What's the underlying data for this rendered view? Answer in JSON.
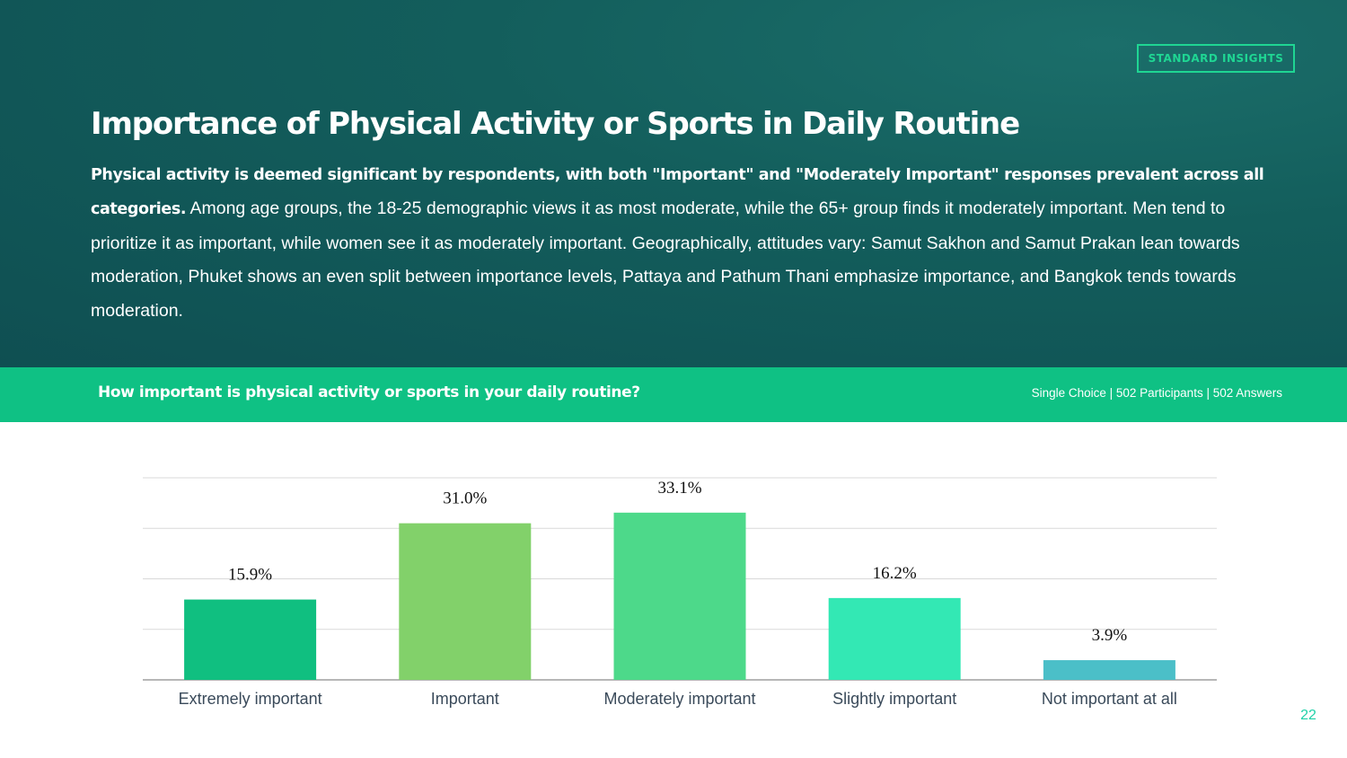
{
  "badge": "STANDARD INSIGHTS",
  "title": "Importance of Physical Activity or Sports in Daily Routine",
  "description": {
    "lead": "Physical activity is deemed significant by respondents, with both \"Important\" and \"Moderately Important\" responses prevalent across all categories.",
    "body": " Among age groups, the 18-25 demographic views it as most moderate, while the 65+ group finds it moderately important. Men tend to prioritize it as important, while women see it as moderately important. Geographically, attitudes vary: Samut Sakhon and Samut Prakan lean towards moderation, Phuket shows an even split between importance levels, Pattaya and Pathum Thani emphasize importance, and Bangkok tends towards moderation."
  },
  "question": {
    "text": "How important is physical activity or sports in your daily routine?",
    "meta": "Single Choice | 502 Participants | 502 Answers"
  },
  "page_number": "22",
  "colors": {
    "hero": "#0f4f52",
    "accent": "#0fc184",
    "badge": "#1fd693"
  },
  "chart_data": {
    "type": "bar",
    "categories": [
      "Extremely important",
      "Important",
      "Moderately important",
      "Slightly important",
      "Not important at all"
    ],
    "values": [
      15.9,
      31.0,
      33.1,
      16.2,
      3.9
    ],
    "labels": [
      "15.9%",
      "31.0%",
      "33.1%",
      "16.2%",
      "3.9%"
    ],
    "colors": [
      "#10bf80",
      "#82d16a",
      "#4dd98a",
      "#33e8b4",
      "#4bbfc8"
    ],
    "ylim": [
      0,
      40
    ],
    "grid": true,
    "title": "",
    "xlabel": "",
    "ylabel": ""
  }
}
